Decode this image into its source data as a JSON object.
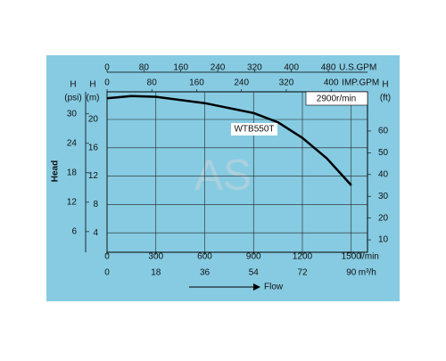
{
  "chart_data": {
    "type": "line",
    "x_title": "Flow",
    "y_title": "Head",
    "speed_label": "2900r/min",
    "watermark": "AS",
    "x_axes": [
      {
        "unit": "l/min",
        "lim": [
          0,
          1600
        ],
        "ticks": [
          0,
          300,
          600,
          900,
          1200,
          1500
        ]
      },
      {
        "unit": "m³/h",
        "lim": [
          0,
          96
        ],
        "ticks": [
          0,
          18,
          36,
          54,
          72,
          90
        ]
      },
      {
        "unit": "U.S.GPM",
        "lim": [
          0,
          565
        ],
        "ticks": [
          0,
          80,
          160,
          240,
          320,
          400,
          480
        ]
      },
      {
        "unit": "IMP.GPM",
        "lim": [
          0,
          465
        ],
        "ticks": [
          0,
          80,
          160,
          240,
          320,
          400
        ]
      }
    ],
    "y_axes": [
      {
        "name": "H",
        "unit": "(m)",
        "lim": [
          1.25,
          23.9
        ],
        "ticks": [
          4,
          8,
          12,
          16,
          20
        ]
      },
      {
        "name": "H",
        "unit": "(psi)",
        "lim": [
          1.8,
          34.5
        ],
        "ticks": [
          6,
          12,
          18,
          24,
          30
        ]
      },
      {
        "name": "H",
        "unit": "(ft)",
        "lim": [
          4.3,
          78
        ],
        "ticks": [
          10,
          20,
          30,
          40,
          50,
          60
        ]
      }
    ],
    "series": [
      {
        "name": "WTB550T",
        "color": "#000000",
        "x": [
          0,
          150,
          300,
          600,
          900,
          1050,
          1200,
          1350,
          1500
        ],
        "values": [
          23.0,
          23.3,
          23.2,
          22.3,
          20.9,
          19.6,
          17.4,
          14.5,
          10.7
        ]
      }
    ],
    "grid": true
  }
}
